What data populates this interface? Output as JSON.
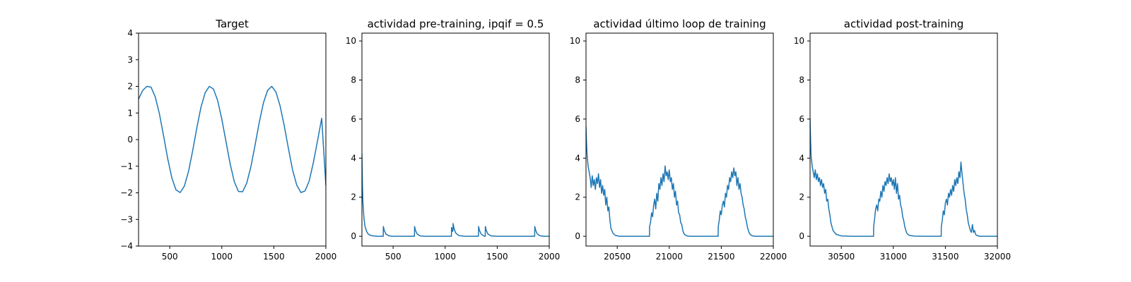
{
  "figure": {
    "background": "#ffffff",
    "line_color": "#1f77b4"
  },
  "chart_data": [
    {
      "type": "line",
      "title": "Target",
      "xlabel": "",
      "ylabel": "",
      "xlim": [
        200,
        2000
      ],
      "ylim": [
        -4,
        4
      ],
      "xticks": [
        500,
        1000,
        1500,
        2000
      ],
      "yticks": [
        -4,
        -3,
        -2,
        -1,
        0,
        1,
        2,
        3,
        4
      ],
      "ytick_labels": [
        "−4",
        "−3",
        "−2",
        "−1",
        "0",
        "1",
        "2",
        "3",
        "4"
      ],
      "grid": false,
      "series": [
        {
          "x": [
            200,
            240,
            280,
            320,
            360,
            400,
            440,
            480,
            520,
            560,
            600,
            640,
            680,
            720,
            760,
            800,
            840,
            880,
            920,
            960,
            1000,
            1040,
            1080,
            1120,
            1160,
            1200,
            1240,
            1280,
            1320,
            1360,
            1400,
            1440,
            1480,
            1520,
            1560,
            1600,
            1640,
            1680,
            1720,
            1760,
            1800,
            1840,
            1880,
            1920,
            1960,
            2000
          ],
          "y": [
            1.52,
            1.85,
            2.0,
            1.97,
            1.61,
            0.98,
            0.15,
            -0.71,
            -1.44,
            -1.89,
            -1.99,
            -1.75,
            -1.2,
            -0.42,
            0.44,
            1.22,
            1.76,
            2.0,
            1.9,
            1.47,
            0.77,
            -0.07,
            -0.91,
            -1.58,
            -1.95,
            -1.96,
            -1.63,
            -1.01,
            -0.2,
            0.65,
            1.38,
            1.85,
            2.0,
            1.79,
            1.27,
            0.52,
            -0.33,
            -1.14,
            -1.71,
            -1.99,
            -1.93,
            -1.55,
            -0.86,
            -0.04,
            0.8,
            -1.72
          ]
        }
      ]
    },
    {
      "type": "line",
      "title": "actividad pre-training, ipqif = 0.5",
      "xlabel": "",
      "ylabel": "",
      "xlim": [
        200,
        2000
      ],
      "ylim": [
        -0.5,
        10.4
      ],
      "xticks": [
        500,
        1000,
        1500,
        2000
      ],
      "yticks": [
        0,
        2,
        4,
        6,
        8,
        10
      ],
      "grid": false,
      "series": [
        {
          "x": [
            200,
            205,
            210,
            220,
            230,
            245,
            260,
            280,
            310,
            350,
            405,
            406,
            415,
            430,
            460,
            500,
            550,
            600,
            650,
            705,
            706,
            715,
            730,
            760,
            800,
            900,
            1000,
            1060,
            1061,
            1070,
            1075,
            1076,
            1085,
            1100,
            1130,
            1180,
            1250,
            1320,
            1321,
            1330,
            1345,
            1370,
            1385,
            1386,
            1395,
            1410,
            1440,
            1500,
            1600,
            1700,
            1800,
            1860,
            1861,
            1870,
            1885,
            1910,
            1950,
            2000
          ],
          "y": [
            4.2,
            2.6,
            1.7,
            0.9,
            0.5,
            0.25,
            0.12,
            0.05,
            0.02,
            0.0,
            0.0,
            0.5,
            0.3,
            0.12,
            0.02,
            0.0,
            0.0,
            0.0,
            0.0,
            0.0,
            0.5,
            0.3,
            0.12,
            0.02,
            0.0,
            0.0,
            0.0,
            0.0,
            0.45,
            0.25,
            0.3,
            0.65,
            0.4,
            0.18,
            0.04,
            0.0,
            0.0,
            0.0,
            0.5,
            0.3,
            0.12,
            0.02,
            0.0,
            0.5,
            0.3,
            0.12,
            0.02,
            0.0,
            0.0,
            0.0,
            0.0,
            0.0,
            0.5,
            0.3,
            0.12,
            0.03,
            0.0,
            0.0
          ]
        }
      ]
    },
    {
      "type": "line",
      "title": "actividad último loop de training",
      "xlabel": "",
      "ylabel": "",
      "xlim": [
        20200,
        22000
      ],
      "ylim": [
        -0.5,
        10.4
      ],
      "xticks": [
        20500,
        21000,
        21500,
        22000
      ],
      "yticks": [
        0,
        2,
        4,
        6,
        8,
        10
      ],
      "grid": false,
      "series": [
        {
          "x": [
            20200,
            20205,
            20210,
            20220,
            20230,
            20240,
            20250,
            20260,
            20270,
            20280,
            20290,
            20300,
            20310,
            20320,
            20330,
            20340,
            20350,
            20360,
            20370,
            20380,
            20390,
            20400,
            20410,
            20420,
            20430,
            20440,
            20460,
            20480,
            20520,
            20600,
            20700,
            20810,
            20811,
            20820,
            20830,
            20840,
            20850,
            20860,
            20870,
            20880,
            20890,
            20900,
            20910,
            20920,
            20930,
            20940,
            20950,
            20960,
            20970,
            20980,
            20990,
            21000,
            21010,
            21020,
            21030,
            21040,
            21050,
            21060,
            21070,
            21080,
            21090,
            21100,
            21110,
            21120,
            21130,
            21140,
            21150,
            21170,
            21200,
            21300,
            21400,
            21470,
            21471,
            21480,
            21490,
            21500,
            21510,
            21520,
            21530,
            21540,
            21550,
            21560,
            21570,
            21580,
            21590,
            21600,
            21610,
            21620,
            21630,
            21640,
            21650,
            21660,
            21670,
            21680,
            21690,
            21700,
            21710,
            21720,
            21730,
            21740,
            21750,
            21760,
            21770,
            21780,
            21800,
            21830,
            21900,
            22000
          ],
          "y": [
            5.6,
            4.8,
            4.2,
            3.6,
            3.3,
            3.0,
            2.5,
            3.1,
            2.6,
            2.9,
            2.4,
            3.0,
            2.7,
            3.2,
            2.5,
            2.9,
            2.2,
            2.6,
            2.1,
            2.4,
            1.6,
            2.0,
            1.3,
            1.5,
            0.8,
            0.4,
            0.15,
            0.05,
            0.0,
            0.0,
            0.0,
            0.0,
            0.5,
            0.7,
            1.2,
            1.0,
            1.6,
            1.9,
            1.4,
            2.2,
            1.8,
            2.7,
            2.4,
            3.0,
            2.6,
            3.2,
            2.8,
            3.6,
            3.1,
            3.3,
            2.9,
            3.4,
            2.8,
            3.0,
            2.4,
            2.7,
            2.0,
            2.3,
            1.6,
            1.8,
            1.2,
            1.1,
            0.7,
            0.6,
            0.3,
            0.15,
            0.08,
            0.02,
            0.0,
            0.0,
            0.0,
            0.0,
            0.5,
            0.8,
            1.3,
            1.1,
            1.6,
            1.8,
            1.5,
            2.2,
            2.0,
            2.6,
            2.4,
            3.0,
            2.8,
            3.3,
            3.0,
            3.5,
            3.1,
            3.3,
            2.6,
            3.0,
            2.4,
            2.7,
            2.2,
            2.0,
            1.6,
            1.4,
            1.0,
            0.8,
            0.5,
            0.3,
            0.15,
            0.08,
            0.02,
            0.0,
            0.0,
            0.0
          ]
        }
      ]
    },
    {
      "type": "line",
      "title": "actividad post-training",
      "xlabel": "",
      "ylabel": "",
      "xlim": [
        30200,
        32000
      ],
      "ylim": [
        -0.5,
        10.4
      ],
      "xticks": [
        30500,
        31000,
        31500,
        32000
      ],
      "yticks": [
        0,
        2,
        4,
        6,
        8,
        10
      ],
      "grid": false,
      "series": [
        {
          "x": [
            30200,
            30205,
            30210,
            30220,
            30230,
            30240,
            30250,
            30260,
            30270,
            30280,
            30290,
            30300,
            30310,
            30320,
            30330,
            30340,
            30350,
            30360,
            30370,
            30380,
            30390,
            30400,
            30420,
            30450,
            30500,
            30600,
            30700,
            30810,
            30811,
            30820,
            30830,
            30840,
            30850,
            30860,
            30870,
            30880,
            30890,
            30900,
            30910,
            30920,
            30930,
            30940,
            30950,
            30960,
            30970,
            30980,
            30990,
            31000,
            31010,
            31020,
            31030,
            31040,
            31050,
            31060,
            31070,
            31080,
            31090,
            31100,
            31110,
            31120,
            31130,
            31150,
            31200,
            31300,
            31400,
            31460,
            31461,
            31470,
            31480,
            31490,
            31500,
            31510,
            31520,
            31530,
            31540,
            31550,
            31560,
            31570,
            31580,
            31590,
            31600,
            31610,
            31620,
            31630,
            31640,
            31650,
            31660,
            31670,
            31680,
            31690,
            31700,
            31710,
            31720,
            31730,
            31740,
            31750,
            31760,
            31770,
            31780,
            31790,
            31800,
            31830,
            31900,
            32000
          ],
          "y": [
            6.0,
            4.9,
            4.1,
            3.6,
            3.3,
            3.0,
            3.4,
            2.9,
            3.2,
            2.8,
            3.0,
            2.6,
            2.9,
            2.5,
            2.7,
            2.2,
            2.4,
            1.8,
            1.9,
            1.4,
            1.1,
            0.7,
            0.3,
            0.1,
            0.02,
            0.0,
            0.0,
            0.0,
            0.5,
            0.9,
            1.4,
            1.6,
            1.3,
            1.9,
            1.8,
            2.3,
            2.0,
            2.6,
            2.3,
            2.8,
            2.6,
            3.0,
            2.7,
            3.2,
            2.8,
            3.0,
            2.6,
            2.9,
            2.4,
            3.0,
            2.2,
            2.7,
            1.9,
            2.1,
            1.6,
            1.4,
            1.0,
            0.8,
            0.5,
            0.3,
            0.15,
            0.05,
            0.01,
            0.0,
            0.0,
            0.0,
            0.5,
            0.8,
            1.3,
            1.1,
            1.7,
            1.9,
            1.6,
            2.2,
            2.0,
            2.4,
            2.1,
            2.6,
            2.3,
            2.9,
            2.6,
            3.0,
            2.7,
            3.3,
            3.0,
            3.8,
            3.2,
            2.7,
            2.2,
            1.9,
            1.4,
            1.1,
            0.7,
            0.5,
            0.3,
            0.2,
            0.6,
            0.2,
            0.3,
            0.1,
            0.05,
            0.0,
            0.0,
            0.0
          ]
        }
      ]
    }
  ]
}
